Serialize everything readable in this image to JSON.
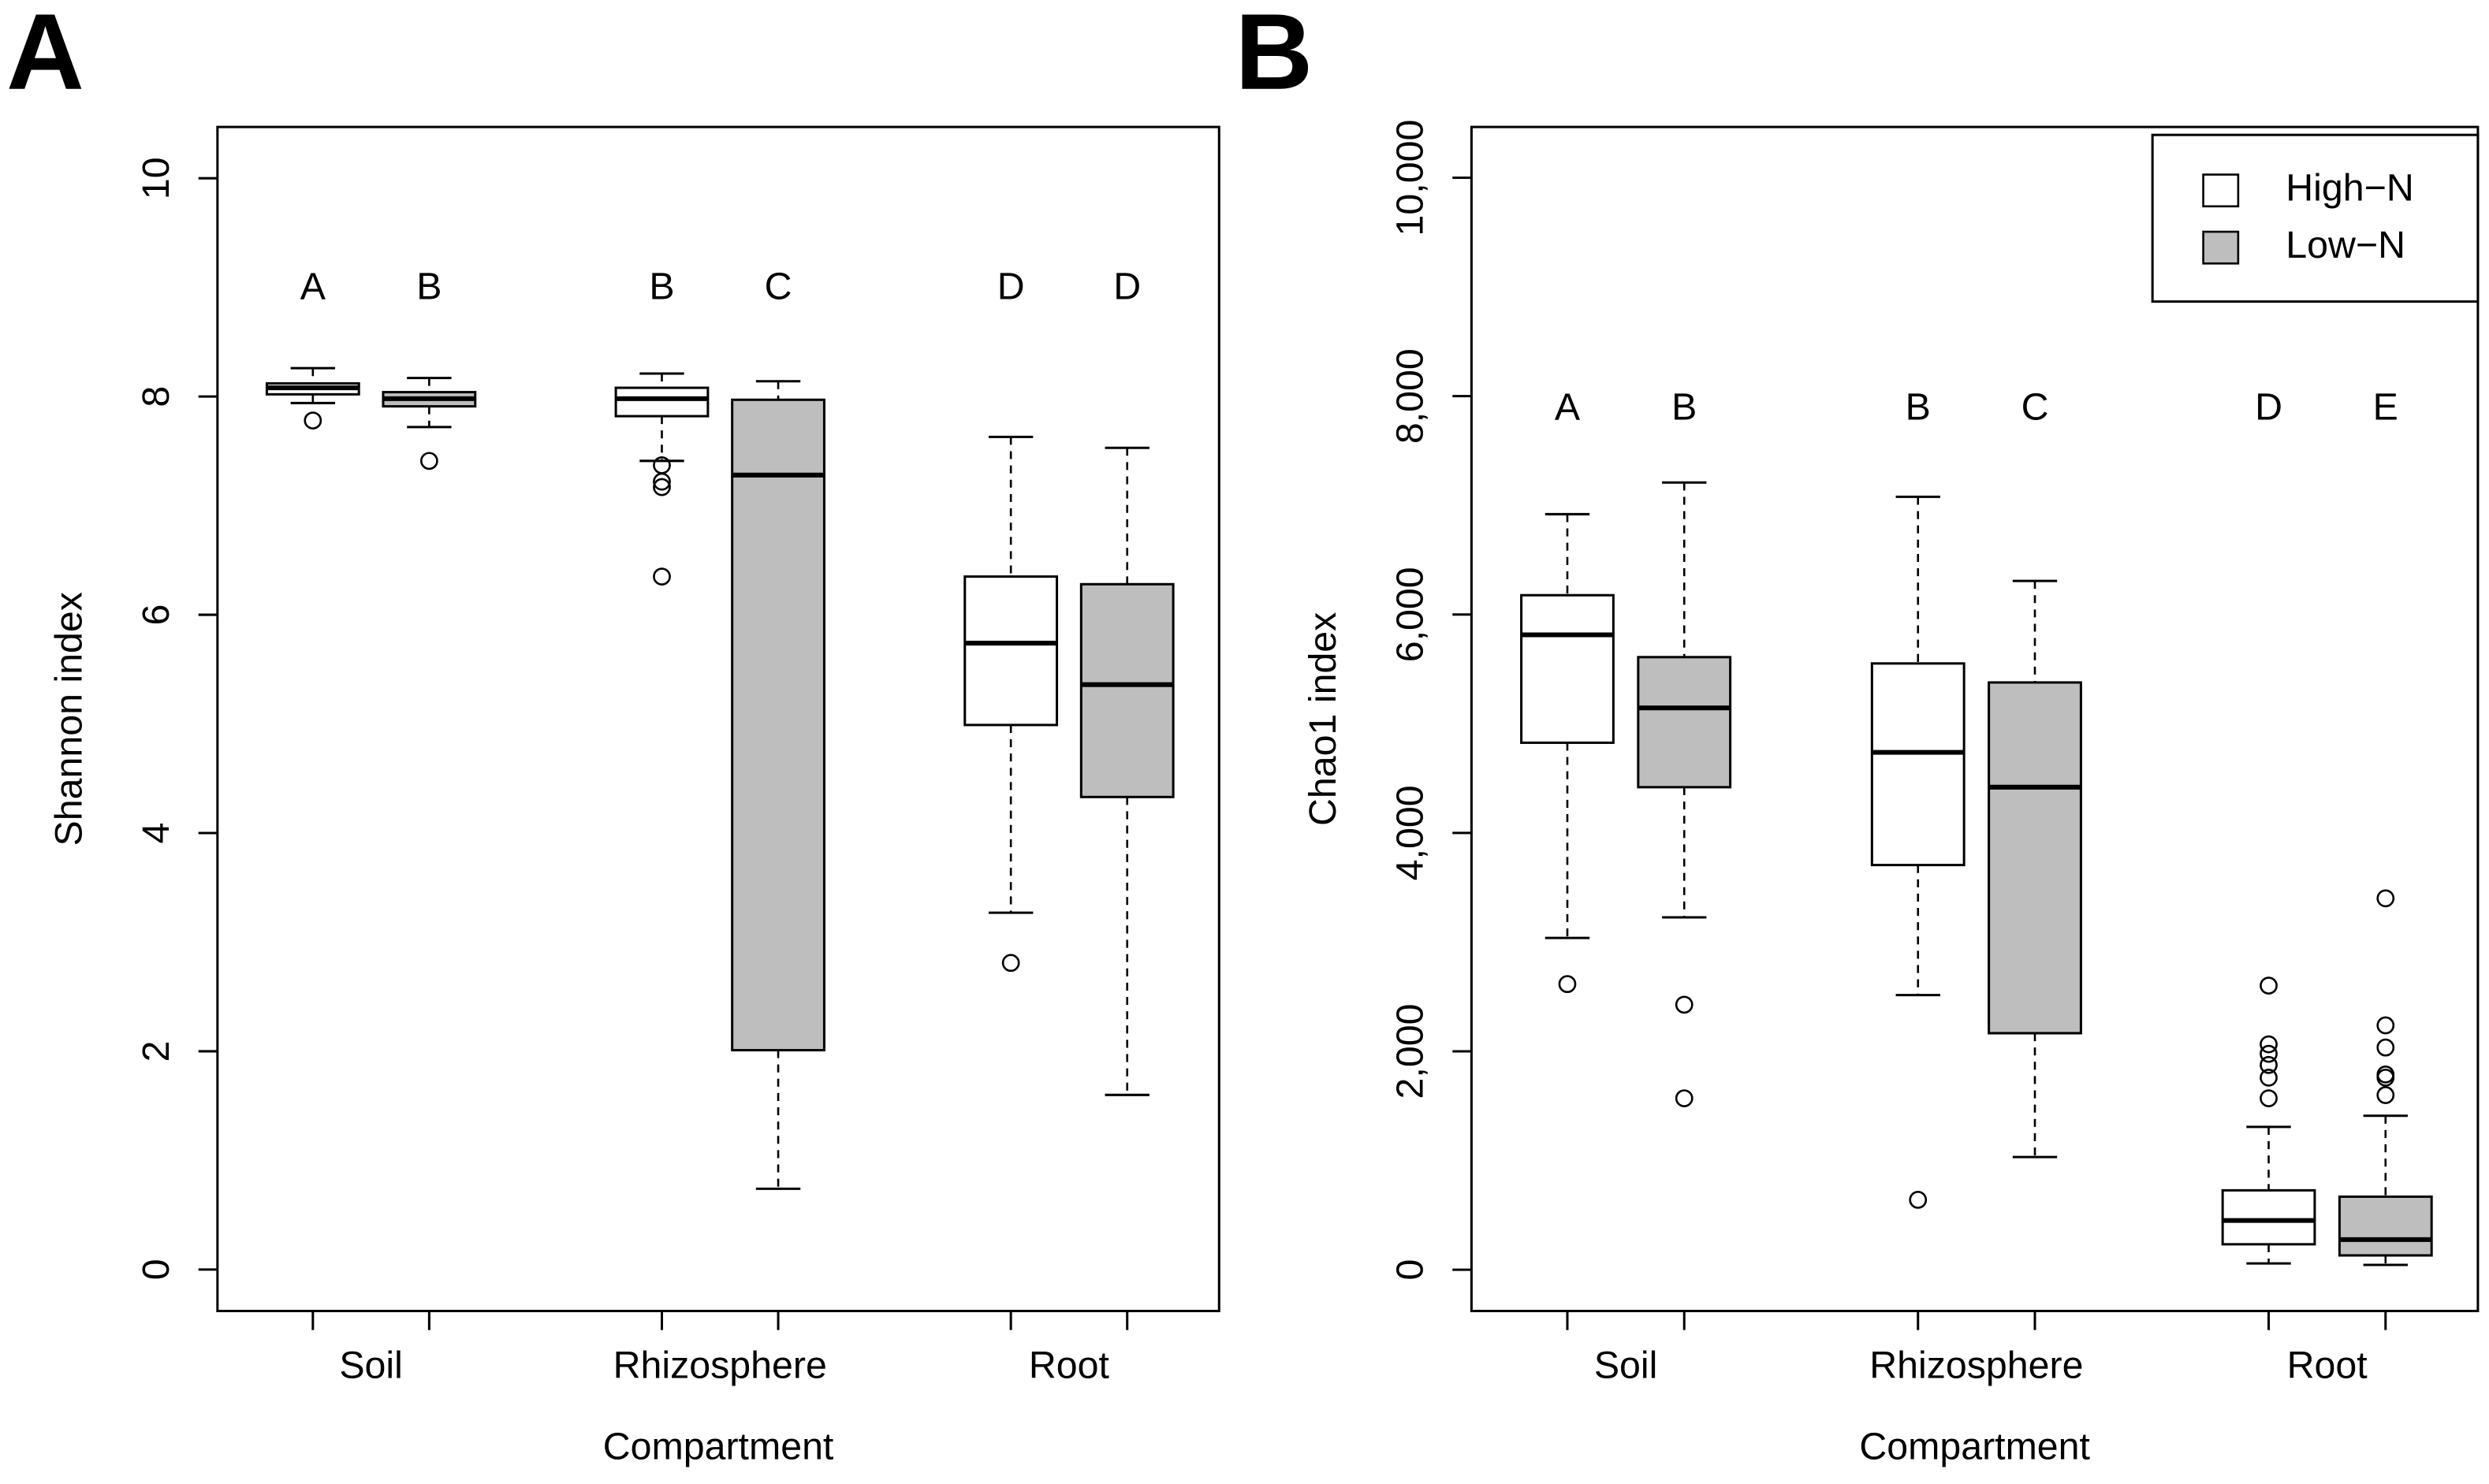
{
  "chart_data": [
    {
      "type": "box",
      "panel_label": "A",
      "ylabel": "Shannon index",
      "xlabel": "Compartment",
      "categories": [
        "Soil",
        "Rhizosphere",
        "Root"
      ],
      "ylim": [
        -0.38,
        10.47
      ],
      "yticks": [
        0,
        2,
        4,
        6,
        8,
        10
      ],
      "series": [
        {
          "color": "#ffffff",
          "boxes": [
            {
              "whisker_low": 7.94,
              "q1": 8.02,
              "median": 8.08,
              "q3": 8.12,
              "whisker_high": 8.26,
              "outliers": [
                7.78
              ],
              "letter": "A"
            },
            {
              "whisker_low": 7.41,
              "q1": 7.82,
              "median": 7.98,
              "q3": 8.08,
              "whisker_high": 8.21,
              "outliers": [
                7.37,
                7.22,
                7.17,
                6.35
              ],
              "letter": "B"
            },
            {
              "whisker_low": 3.27,
              "q1": 4.99,
              "median": 5.74,
              "q3": 6.35,
              "whisker_high": 7.63,
              "outliers": [
                2.81
              ],
              "letter": "D"
            }
          ]
        },
        {
          "color": "#bebebe",
          "boxes": [
            {
              "whisker_low": 7.72,
              "q1": 7.91,
              "median": 7.98,
              "q3": 8.04,
              "whisker_high": 8.17,
              "outliers": [
                7.41
              ],
              "letter": "B"
            },
            {
              "whisker_low": 0.74,
              "q1": 2.01,
              "median": 7.28,
              "q3": 7.97,
              "whisker_high": 8.14,
              "outliers": [],
              "letter": "C"
            },
            {
              "whisker_low": 1.6,
              "q1": 4.33,
              "median": 5.36,
              "q3": 6.28,
              "whisker_high": 7.53,
              "outliers": [],
              "letter": "D"
            }
          ]
        }
      ]
    },
    {
      "type": "box",
      "panel_label": "B",
      "ylabel": "Chao1 index",
      "xlabel": "Compartment",
      "categories": [
        "Soil",
        "Rhizosphere",
        "Root"
      ],
      "ylim": [
        -378,
        10465
      ],
      "yticks": [
        0,
        {
          "value": 2000,
          "label": "2,000"
        },
        {
          "value": 4000,
          "label": "4,000"
        },
        {
          "value": 6000,
          "label": "6,000"
        },
        {
          "value": 8000,
          "label": "8,000"
        },
        {
          "value": 10000,
          "label": "10,000"
        }
      ],
      "legend": "top-right",
      "series": [
        {
          "name": "High−N",
          "color": "#ffffff",
          "boxes": [
            {
              "whisker_low": 3038,
              "q1": 4826,
              "median": 5814,
              "q3": 6177,
              "whisker_high": 6919,
              "outliers": [
                2616
              ],
              "letter": "A"
            },
            {
              "whisker_low": 2515,
              "q1": 3706,
              "median": 4738,
              "q3": 5552,
              "whisker_high": 7078,
              "outliers": [
                640
              ],
              "letter": "B"
            },
            {
              "whisker_low": 58,
              "q1": 233,
              "median": 451,
              "q3": 727,
              "whisker_high": 1308,
              "outliers": [
                1570,
                1759,
                1875,
                1977,
                2064,
                2602
              ],
              "letter": "D"
            }
          ]
        },
        {
          "name": "Low−N",
          "color": "#bebebe",
          "boxes": [
            {
              "whisker_low": 3227,
              "q1": 4419,
              "median": 5145,
              "q3": 5610,
              "whisker_high": 7209,
              "outliers": [
                2427,
                1570
              ],
              "letter": "B"
            },
            {
              "whisker_low": 1032,
              "q1": 2166,
              "median": 4419,
              "q3": 5378,
              "whisker_high": 6308,
              "outliers": [],
              "letter": "C"
            },
            {
              "whisker_low": 44,
              "q1": 131,
              "median": 276,
              "q3": 669,
              "whisker_high": 1410,
              "outliers": [
                1599,
                1759,
                1788,
                2035,
                2238,
                3401
              ],
              "letter": "E"
            }
          ]
        }
      ]
    }
  ]
}
